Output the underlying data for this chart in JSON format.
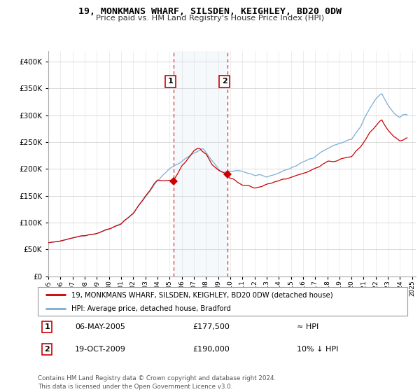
{
  "title": "19, MONKMANS WHARF, SILSDEN, KEIGHLEY, BD20 0DW",
  "subtitle": "Price paid vs. HM Land Registry's House Price Index (HPI)",
  "legend_line1": "19, MONKMANS WHARF, SILSDEN, KEIGHLEY, BD20 0DW (detached house)",
  "legend_line2": "HPI: Average price, detached house, Bradford",
  "transaction1_date": "06-MAY-2005",
  "transaction1_price": "£177,500",
  "transaction1_hpi": "≈ HPI",
  "transaction2_date": "19-OCT-2009",
  "transaction2_price": "£190,000",
  "transaction2_hpi": "10% ↓ HPI",
  "footer": "Contains HM Land Registry data © Crown copyright and database right 2024.\nThis data is licensed under the Open Government Licence v3.0.",
  "property_color": "#cc0000",
  "hpi_color": "#7aadd4",
  "shade_color": "#ddeeff",
  "transaction1_x": 2005.35,
  "transaction2_x": 2009.8,
  "transaction1_y": 177500,
  "transaction2_y": 190000,
  "ylim": [
    0,
    420000
  ],
  "xlim": [
    1995,
    2025.3
  ],
  "yticks": [
    0,
    50000,
    100000,
    150000,
    200000,
    250000,
    300000,
    350000,
    400000
  ]
}
